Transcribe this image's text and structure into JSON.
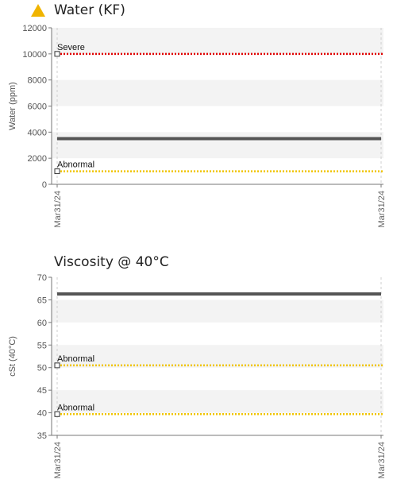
{
  "charts": [
    {
      "id": "water",
      "title": "Water (KF)",
      "warning_icon": "warning-triangle-icon",
      "warning_color": "#f0b400",
      "chart_data": {
        "type": "line",
        "title": "Water (KF)",
        "xlabel": "",
        "ylabel": "Water (ppm)",
        "ylim": [
          0,
          12000
        ],
        "yticks": [
          0,
          2000,
          4000,
          6000,
          8000,
          10000,
          12000
        ],
        "xtick_labels": [
          "Mar31/24",
          "Mar31/24"
        ],
        "grid": "banded",
        "series": [
          {
            "values": [
              3500,
              3500
            ],
            "color": "#555555"
          }
        ],
        "limits": [
          {
            "label": "Severe",
            "value": 10000,
            "color": "#e00000"
          },
          {
            "label": "Abnormal",
            "value": 1000,
            "color": "#f0c400"
          }
        ]
      }
    },
    {
      "id": "viscosity",
      "title": "Viscosity @ 40°C",
      "chart_data": {
        "type": "line",
        "title": "Viscosity @ 40°C",
        "xlabel": "",
        "ylabel": "cSt (40°C)",
        "ylim": [
          35,
          70
        ],
        "yticks": [
          35,
          40,
          45,
          50,
          55,
          60,
          65,
          70
        ],
        "xtick_labels": [
          "Mar31/24",
          "Mar31/24"
        ],
        "grid": "banded",
        "series": [
          {
            "values": [
              66.3,
              66.3
            ],
            "color": "#555555"
          }
        ],
        "limits": [
          {
            "label": "Abnormal",
            "value": 50.5,
            "color": "#f0c400"
          },
          {
            "label": "Abnormal",
            "value": 39.7,
            "color": "#f0c400"
          }
        ]
      }
    }
  ]
}
